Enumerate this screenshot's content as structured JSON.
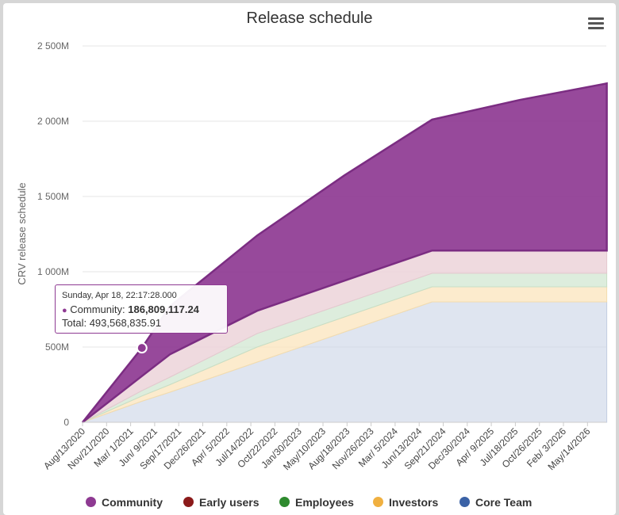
{
  "colors": {
    "community": "#8e3a92",
    "early_users": "#8b1a1a",
    "employees": "#2e8a2e",
    "investors": "#f0b040",
    "core_team": "#3b62a6",
    "grid": "#e6e6e6",
    "axis_text": "#666666"
  },
  "menu": {
    "icon": "hamburger-menu-icon"
  },
  "tooltip": {
    "date": "Sunday, Apr 18, 22:17:28.000",
    "series_label": "Community: ",
    "series_value": "186,809,117.24",
    "total_label": "Total: ",
    "total_value": "493,568,835.91"
  },
  "legend": [
    {
      "label": "Community",
      "color": "#8e3a92"
    },
    {
      "label": "Early users",
      "color": "#8b1a1a"
    },
    {
      "label": "Employees",
      "color": "#2e8a2e"
    },
    {
      "label": "Investors",
      "color": "#f0b040"
    },
    {
      "label": "Core Team",
      "color": "#3b62a6"
    }
  ],
  "chart_data": {
    "type": "area",
    "stacked": true,
    "title": "Release schedule",
    "ylabel": "CRV release schedule",
    "xlabel": "",
    "ylim": [
      0,
      2500
    ],
    "y_unit": "M",
    "y_ticks": [
      "0",
      "500M",
      "1 000M",
      "1 500M",
      "2 000M",
      "2 500M"
    ],
    "x_ticks": [
      "Aug/13/2020",
      "Nov/21/2020",
      "Mar/ 1/2021",
      "Jun/ 9/2021",
      "Sep/17/2021",
      "Dec/26/2021",
      "Apr/ 5/2022",
      "Jul/14/2022",
      "Oct/22/2022",
      "Jan/30/2023",
      "May/10/2023",
      "Aug/18/2023",
      "Nov/26/2023",
      "Mar/ 5/2024",
      "Jun/13/2024",
      "Sep/21/2024",
      "Dec/30/2024",
      "Apr/ 9/2025",
      "Jul/18/2025",
      "Oct/26/2025",
      "Feb/ 3/2026",
      "May/14/2026"
    ],
    "x_dates": [
      "2020-08-13",
      "2021-04-18",
      "2021-08-13",
      "2022-08-13",
      "2023-08-13",
      "2024-08-13",
      "2025-08-13",
      "2026-08-13"
    ],
    "grid": true,
    "legend_position": "bottom",
    "series": [
      {
        "name": "Core Team",
        "values": [
          0,
          140,
          200,
          400,
          600,
          800,
          800,
          800
        ]
      },
      {
        "name": "Investors",
        "values": [
          0,
          35,
          50,
          100,
          100,
          100,
          100,
          100
        ]
      },
      {
        "name": "Employees",
        "values": [
          0,
          35,
          50,
          90,
          90,
          90,
          90,
          90
        ]
      },
      {
        "name": "Early users",
        "values": [
          0,
          97,
          151,
          151,
          151,
          151,
          151,
          151
        ]
      },
      {
        "name": "Community",
        "values": [
          0,
          187,
          320,
          500,
          700,
          870,
          1000,
          1110
        ]
      }
    ]
  }
}
